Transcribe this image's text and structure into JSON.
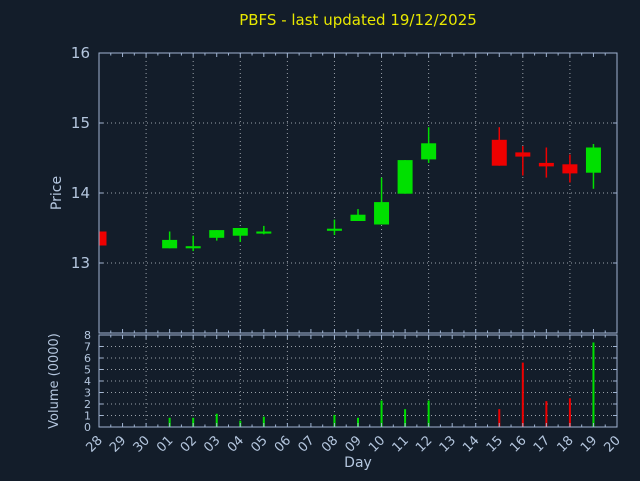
{
  "title": "PBFS - last updated 19/12/2025",
  "colors": {
    "background": "#131d2a",
    "axis": "#a0b4d2",
    "tick_text": "#b4c6de",
    "grid": "#c8cdd4",
    "title": "#e8e800",
    "up": "#00e000",
    "down": "#ee0000"
  },
  "chart_data": [
    {
      "type": "candlestick",
      "title": "PBFS - last updated 19/12/2025",
      "xlabel": "Day",
      "ylabel": "Price",
      "ylim": [
        12,
        16
      ],
      "yticks": [
        13,
        14,
        15,
        16
      ],
      "grid": true,
      "legend": "none",
      "categories": [
        "28",
        "29",
        "30",
        "01",
        "02",
        "03",
        "04",
        "05",
        "06",
        "07",
        "08",
        "09",
        "10",
        "11",
        "12",
        "13",
        "14",
        "15",
        "16",
        "17",
        "18",
        "19",
        "20"
      ],
      "candles": [
        {
          "day": "28",
          "open": 13.45,
          "high": 13.45,
          "low": 13.25,
          "close": 13.25
        },
        {
          "day": "01",
          "open": 13.21,
          "high": 13.45,
          "low": 13.21,
          "close": 13.33
        },
        {
          "day": "02",
          "open": 13.21,
          "high": 13.39,
          "low": 13.17,
          "close": 13.24
        },
        {
          "day": "03",
          "open": 13.36,
          "high": 13.47,
          "low": 13.32,
          "close": 13.47
        },
        {
          "day": "04",
          "open": 13.39,
          "high": 13.5,
          "low": 13.3,
          "close": 13.5
        },
        {
          "day": "05",
          "open": 13.42,
          "high": 13.53,
          "low": 13.41,
          "close": 13.45
        },
        {
          "day": "08",
          "open": 13.46,
          "high": 13.62,
          "low": 13.4,
          "close": 13.49
        },
        {
          "day": "09",
          "open": 13.6,
          "high": 13.77,
          "low": 13.6,
          "close": 13.69
        },
        {
          "day": "10",
          "open": 13.55,
          "high": 14.22,
          "low": 13.55,
          "close": 13.87
        },
        {
          "day": "11",
          "open": 13.99,
          "high": 14.47,
          "low": 13.99,
          "close": 14.47
        },
        {
          "day": "12",
          "open": 14.48,
          "high": 14.94,
          "low": 14.43,
          "close": 14.71
        },
        {
          "day": "15",
          "open": 14.76,
          "high": 14.94,
          "low": 14.39,
          "close": 14.39
        },
        {
          "day": "16",
          "open": 14.58,
          "high": 14.67,
          "low": 14.25,
          "close": 14.52
        },
        {
          "day": "17",
          "open": 14.43,
          "high": 14.65,
          "low": 14.22,
          "close": 14.38
        },
        {
          "day": "18",
          "open": 14.41,
          "high": 14.55,
          "low": 14.15,
          "close": 14.28
        },
        {
          "day": "19",
          "open": 14.29,
          "high": 14.7,
          "low": 14.06,
          "close": 14.65
        }
      ]
    },
    {
      "type": "bar",
      "ylabel": "Volume (0000)",
      "ylim": [
        0,
        8
      ],
      "yticks": [
        0,
        1,
        2,
        3,
        4,
        5,
        6,
        7,
        8
      ],
      "grid": true,
      "categories": [
        "28",
        "29",
        "30",
        "01",
        "02",
        "03",
        "04",
        "05",
        "06",
        "07",
        "08",
        "09",
        "10",
        "11",
        "12",
        "13",
        "14",
        "15",
        "16",
        "17",
        "18",
        "19",
        "20"
      ],
      "values": [
        0,
        null,
        null,
        0.8,
        0.8,
        1.15,
        0.55,
        0.9,
        null,
        null,
        1.05,
        0.8,
        2.3,
        1.55,
        2.3,
        null,
        null,
        1.55,
        5.6,
        2.25,
        2.5,
        7.35,
        null
      ]
    }
  ]
}
